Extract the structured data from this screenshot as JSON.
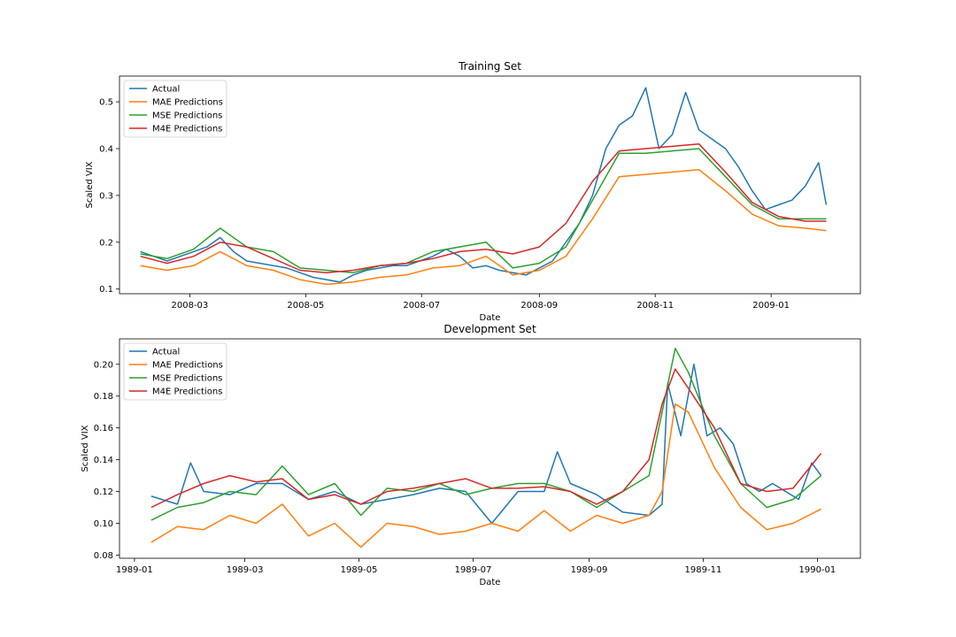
{
  "chart_data": [
    {
      "type": "line",
      "title": "Training Set",
      "xlabel": "Date",
      "ylabel": "Scaled VIX",
      "x_axis_type": "date",
      "xlim": [
        "2008-01-24",
        "2009-02-17"
      ],
      "ylim": [
        0.09,
        0.555
      ],
      "xticks": [
        "2008-03",
        "2008-05",
        "2008-07",
        "2008-09",
        "2008-11",
        "2009-01"
      ],
      "yticks": [
        0.1,
        0.2,
        0.3,
        0.4,
        0.5
      ],
      "grid": false,
      "legend": "top-left",
      "series": [
        {
          "name": "Actual",
          "color": "#1f77b4",
          "x": [
            "2008-02-04",
            "2008-02-11",
            "2008-02-18",
            "2008-02-25",
            "2008-03-03",
            "2008-03-10",
            "2008-03-17",
            "2008-03-24",
            "2008-03-31",
            "2008-04-07",
            "2008-04-14",
            "2008-04-21",
            "2008-04-28",
            "2008-05-05",
            "2008-05-12",
            "2008-05-19",
            "2008-05-26",
            "2008-06-02",
            "2008-06-09",
            "2008-06-16",
            "2008-06-23",
            "2008-06-30",
            "2008-07-07",
            "2008-07-14",
            "2008-07-21",
            "2008-07-28",
            "2008-08-04",
            "2008-08-11",
            "2008-08-18",
            "2008-08-25",
            "2008-09-01",
            "2008-09-08",
            "2008-09-15",
            "2008-09-22",
            "2008-09-29",
            "2008-10-06",
            "2008-10-13",
            "2008-10-20",
            "2008-10-27",
            "2008-11-03",
            "2008-11-10",
            "2008-11-17",
            "2008-11-24",
            "2008-12-01",
            "2008-12-08",
            "2008-12-15",
            "2008-12-22",
            "2008-12-29",
            "2009-01-05",
            "2009-01-12",
            "2009-01-19",
            "2009-01-26",
            "2009-01-30"
          ],
          "y": [
            0.18,
            0.17,
            0.16,
            0.17,
            0.18,
            0.19,
            0.21,
            0.18,
            0.16,
            0.155,
            0.15,
            0.145,
            0.135,
            0.125,
            0.12,
            0.115,
            0.13,
            0.14,
            0.145,
            0.15,
            0.15,
            0.16,
            0.17,
            0.185,
            0.17,
            0.145,
            0.15,
            0.14,
            0.135,
            0.13,
            0.145,
            0.16,
            0.2,
            0.24,
            0.3,
            0.4,
            0.45,
            0.47,
            0.53,
            0.4,
            0.43,
            0.52,
            0.44,
            0.42,
            0.4,
            0.36,
            0.31,
            0.27,
            0.28,
            0.29,
            0.32,
            0.37,
            0.28
          ]
        },
        {
          "name": "MAE Predictions",
          "color": "#ff7f0e",
          "x": [
            "2008-02-04",
            "2008-02-18",
            "2008-03-03",
            "2008-03-17",
            "2008-03-31",
            "2008-04-14",
            "2008-04-28",
            "2008-05-12",
            "2008-05-26",
            "2008-06-09",
            "2008-06-23",
            "2008-07-07",
            "2008-07-21",
            "2008-08-04",
            "2008-08-18",
            "2008-09-01",
            "2008-09-15",
            "2008-09-29",
            "2008-10-13",
            "2008-10-27",
            "2008-11-10",
            "2008-11-24",
            "2008-12-08",
            "2008-12-22",
            "2009-01-05",
            "2009-01-19",
            "2009-01-30"
          ],
          "y": [
            0.15,
            0.14,
            0.15,
            0.18,
            0.15,
            0.14,
            0.12,
            0.11,
            0.115,
            0.125,
            0.13,
            0.145,
            0.15,
            0.17,
            0.13,
            0.14,
            0.17,
            0.25,
            0.34,
            0.345,
            0.35,
            0.355,
            0.31,
            0.26,
            0.235,
            0.23,
            0.225
          ]
        },
        {
          "name": "MSE Predictions",
          "color": "#2ca02c",
          "x": [
            "2008-02-04",
            "2008-02-18",
            "2008-03-03",
            "2008-03-17",
            "2008-03-31",
            "2008-04-14",
            "2008-04-28",
            "2008-05-12",
            "2008-05-26",
            "2008-06-09",
            "2008-06-23",
            "2008-07-07",
            "2008-07-21",
            "2008-08-04",
            "2008-08-18",
            "2008-09-01",
            "2008-09-15",
            "2008-09-29",
            "2008-10-13",
            "2008-10-27",
            "2008-11-10",
            "2008-11-24",
            "2008-12-08",
            "2008-12-22",
            "2009-01-05",
            "2009-01-19",
            "2009-01-30"
          ],
          "y": [
            0.175,
            0.165,
            0.185,
            0.23,
            0.19,
            0.18,
            0.145,
            0.14,
            0.135,
            0.15,
            0.155,
            0.18,
            0.19,
            0.2,
            0.145,
            0.155,
            0.19,
            0.29,
            0.39,
            0.39,
            0.395,
            0.4,
            0.34,
            0.28,
            0.25,
            0.25,
            0.25
          ]
        },
        {
          "name": "M4E Predictions",
          "color": "#d62728",
          "x": [
            "2008-02-04",
            "2008-02-18",
            "2008-03-03",
            "2008-03-17",
            "2008-03-31",
            "2008-04-14",
            "2008-04-28",
            "2008-05-12",
            "2008-05-26",
            "2008-06-09",
            "2008-06-23",
            "2008-07-07",
            "2008-07-21",
            "2008-08-04",
            "2008-08-18",
            "2008-09-01",
            "2008-09-15",
            "2008-09-29",
            "2008-10-13",
            "2008-10-27",
            "2008-11-10",
            "2008-11-24",
            "2008-12-08",
            "2008-12-22",
            "2009-01-05",
            "2009-01-19",
            "2009-01-30"
          ],
          "y": [
            0.17,
            0.155,
            0.17,
            0.2,
            0.19,
            0.165,
            0.14,
            0.135,
            0.14,
            0.15,
            0.155,
            0.165,
            0.18,
            0.185,
            0.175,
            0.19,
            0.24,
            0.33,
            0.395,
            0.4,
            0.405,
            0.41,
            0.35,
            0.285,
            0.255,
            0.245,
            0.245
          ]
        }
      ]
    },
    {
      "type": "line",
      "title": "Development Set",
      "xlabel": "Date",
      "ylabel": "Scaled VIX",
      "x_axis_type": "date",
      "xlim": [
        "1988-12-24",
        "1990-01-24"
      ],
      "ylim": [
        0.078,
        0.216
      ],
      "xticks": [
        "1989-01",
        "1989-03",
        "1989-05",
        "1989-07",
        "1989-09",
        "1989-11",
        "1990-01"
      ],
      "yticks": [
        0.08,
        0.1,
        0.12,
        0.14,
        0.16,
        0.18,
        0.2
      ],
      "grid": false,
      "legend": "top-left",
      "series": [
        {
          "name": "Actual",
          "color": "#1f77b4",
          "x": [
            "1989-01-10",
            "1989-01-24",
            "1989-01-31",
            "1989-02-07",
            "1989-02-21",
            "1989-03-07",
            "1989-03-21",
            "1989-04-04",
            "1989-04-18",
            "1989-05-02",
            "1989-05-16",
            "1989-05-30",
            "1989-06-13",
            "1989-06-27",
            "1989-07-11",
            "1989-07-25",
            "1989-08-08",
            "1989-08-15",
            "1989-08-22",
            "1989-09-05",
            "1989-09-19",
            "1989-10-03",
            "1989-10-10",
            "1989-10-13",
            "1989-10-20",
            "1989-10-27",
            "1989-11-03",
            "1989-11-10",
            "1989-11-17",
            "1989-11-24",
            "1989-12-01",
            "1989-12-08",
            "1989-12-15",
            "1989-12-22",
            "1989-12-29",
            "1990-01-03"
          ],
          "y": [
            0.117,
            0.112,
            0.138,
            0.12,
            0.118,
            0.125,
            0.125,
            0.115,
            0.12,
            0.112,
            0.115,
            0.118,
            0.122,
            0.12,
            0.1,
            0.12,
            0.12,
            0.145,
            0.125,
            0.118,
            0.107,
            0.105,
            0.112,
            0.188,
            0.155,
            0.2,
            0.155,
            0.16,
            0.15,
            0.125,
            0.12,
            0.125,
            0.12,
            0.115,
            0.138,
            0.13
          ]
        },
        {
          "name": "MAE Predictions",
          "color": "#ff7f0e",
          "x": [
            "1989-01-10",
            "1989-01-24",
            "1989-02-07",
            "1989-02-21",
            "1989-03-07",
            "1989-03-21",
            "1989-04-04",
            "1989-04-18",
            "1989-05-02",
            "1989-05-16",
            "1989-05-30",
            "1989-06-13",
            "1989-06-27",
            "1989-07-11",
            "1989-07-25",
            "1989-08-08",
            "1989-08-22",
            "1989-09-05",
            "1989-09-19",
            "1989-10-03",
            "1989-10-10",
            "1989-10-17",
            "1989-10-24",
            "1989-11-07",
            "1989-11-21",
            "1989-12-05",
            "1989-12-19",
            "1990-01-03"
          ],
          "y": [
            0.088,
            0.098,
            0.096,
            0.105,
            0.1,
            0.112,
            0.092,
            0.1,
            0.085,
            0.1,
            0.098,
            0.093,
            0.095,
            0.1,
            0.095,
            0.108,
            0.095,
            0.105,
            0.1,
            0.105,
            0.12,
            0.175,
            0.17,
            0.135,
            0.11,
            0.096,
            0.1,
            0.109
          ]
        },
        {
          "name": "MSE Predictions",
          "color": "#2ca02c",
          "x": [
            "1989-01-10",
            "1989-01-24",
            "1989-02-07",
            "1989-02-21",
            "1989-03-07",
            "1989-03-21",
            "1989-04-04",
            "1989-04-18",
            "1989-05-02",
            "1989-05-16",
            "1989-05-30",
            "1989-06-13",
            "1989-06-27",
            "1989-07-11",
            "1989-07-25",
            "1989-08-08",
            "1989-08-22",
            "1989-09-05",
            "1989-09-19",
            "1989-10-03",
            "1989-10-10",
            "1989-10-17",
            "1989-10-24",
            "1989-11-07",
            "1989-11-21",
            "1989-12-05",
            "1989-12-19",
            "1990-01-03"
          ],
          "y": [
            0.102,
            0.11,
            0.113,
            0.12,
            0.118,
            0.136,
            0.118,
            0.125,
            0.105,
            0.122,
            0.12,
            0.125,
            0.118,
            0.122,
            0.125,
            0.125,
            0.12,
            0.11,
            0.12,
            0.13,
            0.17,
            0.21,
            0.195,
            0.155,
            0.125,
            0.11,
            0.115,
            0.13
          ]
        },
        {
          "name": "M4E Predictions",
          "color": "#d62728",
          "x": [
            "1989-01-10",
            "1989-01-24",
            "1989-02-07",
            "1989-02-21",
            "1989-03-07",
            "1989-03-21",
            "1989-04-04",
            "1989-04-18",
            "1989-05-02",
            "1989-05-16",
            "1989-05-30",
            "1989-06-13",
            "1989-06-27",
            "1989-07-11",
            "1989-07-25",
            "1989-08-08",
            "1989-08-22",
            "1989-09-05",
            "1989-09-19",
            "1989-10-03",
            "1989-10-10",
            "1989-10-17",
            "1989-10-24",
            "1989-11-07",
            "1989-11-21",
            "1989-12-05",
            "1989-12-19",
            "1990-01-03"
          ],
          "y": [
            0.11,
            0.118,
            0.125,
            0.13,
            0.126,
            0.128,
            0.115,
            0.118,
            0.112,
            0.12,
            0.122,
            0.125,
            0.128,
            0.122,
            0.122,
            0.123,
            0.12,
            0.112,
            0.12,
            0.14,
            0.175,
            0.197,
            0.185,
            0.16,
            0.125,
            0.12,
            0.122,
            0.144
          ]
        }
      ]
    }
  ]
}
